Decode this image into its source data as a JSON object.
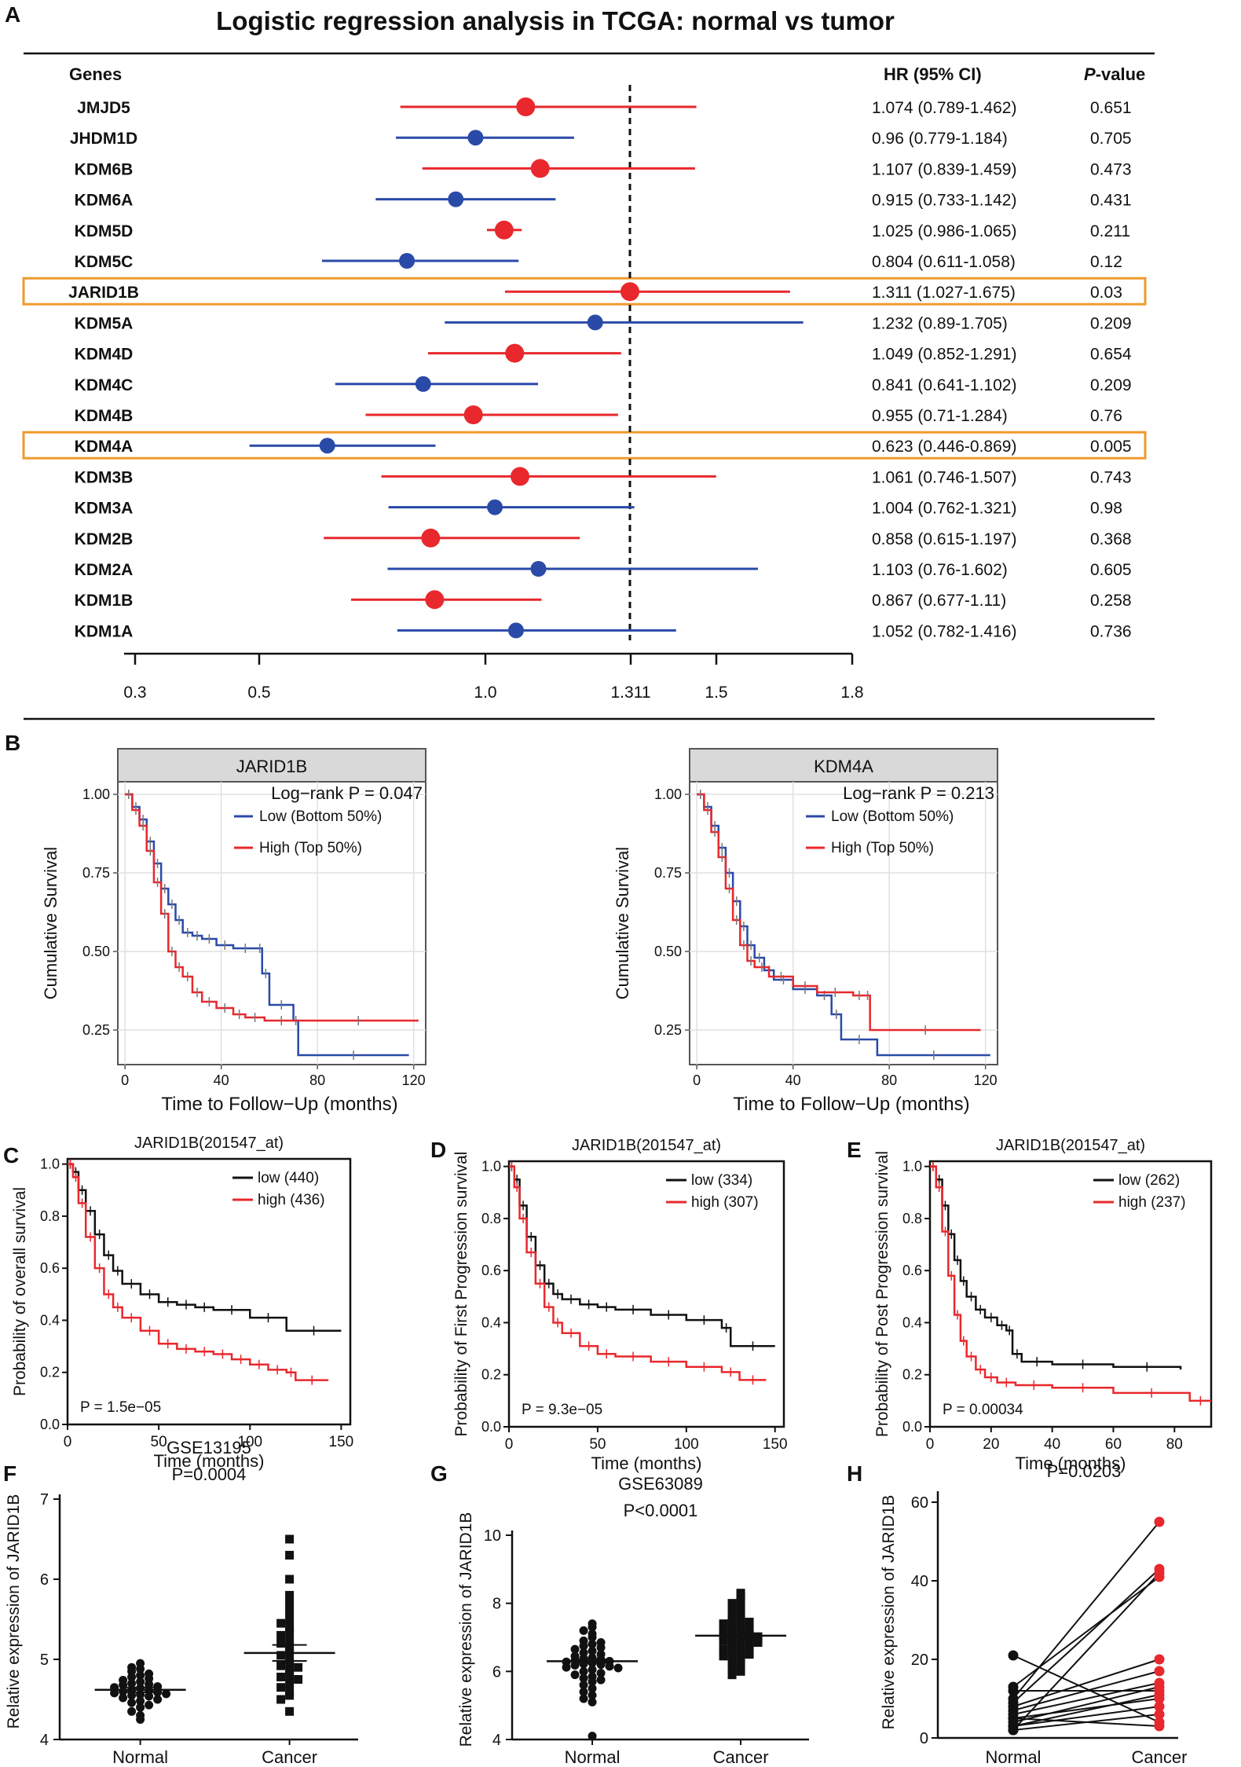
{
  "panel_labels": {
    "A": "A",
    "B": "B",
    "C": "C",
    "D": "D",
    "E": "E",
    "F": "F",
    "G": "G",
    "H": "H"
  },
  "chart_data": [
    {
      "id": "A",
      "type": "forest",
      "title": "Logistic regression analysis in TCGA: normal vs tumor",
      "col_genes": "Genes",
      "col_hr": "HR (95% CI)",
      "col_p": "P-value",
      "ref_line": 1.311,
      "ticks": [
        "0.3",
        "0.5",
        "1.0",
        "1.311",
        "1.5",
        "1.8"
      ],
      "colors": {
        "red": "#e8282d",
        "blue": "#2a4aa8",
        "highlight": "#ef9a2d"
      },
      "rows": [
        {
          "gene": "JMJD5",
          "hr": 1.074,
          "lo": 0.789,
          "hi": 1.462,
          "text": "1.074 (0.789-1.462)",
          "p": "0.651",
          "color": "red",
          "hl": false
        },
        {
          "gene": "JHDM1D",
          "hr": 0.96,
          "lo": 0.779,
          "hi": 1.184,
          "text": "0.96 (0.779-1.184)",
          "p": "0.705",
          "color": "blue",
          "hl": false
        },
        {
          "gene": "KDM6B",
          "hr": 1.107,
          "lo": 0.839,
          "hi": 1.459,
          "text": "1.107 (0.839-1.459)",
          "p": "0.473",
          "color": "red",
          "hl": false
        },
        {
          "gene": "KDM6A",
          "hr": 0.915,
          "lo": 0.733,
          "hi": 1.142,
          "text": "0.915 (0.733-1.142)",
          "p": "0.431",
          "color": "blue",
          "hl": false
        },
        {
          "gene": "KDM5D",
          "hr": 1.025,
          "lo": 0.986,
          "hi": 1.065,
          "text": "1.025 (0.986-1.065)",
          "p": "0.211",
          "color": "red",
          "hl": false
        },
        {
          "gene": "KDM5C",
          "hr": 0.804,
          "lo": 0.611,
          "hi": 1.058,
          "text": "0.804 (0.611-1.058)",
          "p": "0.12",
          "color": "blue",
          "hl": false
        },
        {
          "gene": "JARID1B",
          "hr": 1.311,
          "lo": 1.027,
          "hi": 1.675,
          "text": "1.311 (1.027-1.675)",
          "p": "0.03",
          "color": "red",
          "hl": true
        },
        {
          "gene": "KDM5A",
          "hr": 1.232,
          "lo": 0.89,
          "hi": 1.705,
          "text": "1.232 (0.89-1.705)",
          "p": "0.209",
          "color": "blue",
          "hl": false
        },
        {
          "gene": "KDM4D",
          "hr": 1.049,
          "lo": 0.852,
          "hi": 1.291,
          "text": "1.049 (0.852-1.291)",
          "p": "0.654",
          "color": "red",
          "hl": false
        },
        {
          "gene": "KDM4C",
          "hr": 0.841,
          "lo": 0.641,
          "hi": 1.102,
          "text": "0.841 (0.641-1.102)",
          "p": "0.209",
          "color": "blue",
          "hl": false
        },
        {
          "gene": "KDM4B",
          "hr": 0.955,
          "lo": 0.71,
          "hi": 1.284,
          "text": "0.955 (0.71-1.284)",
          "p": "0.76",
          "color": "red",
          "hl": false
        },
        {
          "gene": "KDM4A",
          "hr": 0.623,
          "lo": 0.446,
          "hi": 0.869,
          "text": "0.623 (0.446-0.869)",
          "p": "0.005",
          "color": "blue",
          "hl": true
        },
        {
          "gene": "KDM3B",
          "hr": 1.061,
          "lo": 0.746,
          "hi": 1.507,
          "text": "1.061 (0.746-1.507)",
          "p": "0.743",
          "color": "red",
          "hl": false
        },
        {
          "gene": "KDM3A",
          "hr": 1.004,
          "lo": 0.762,
          "hi": 1.321,
          "text": "1.004 (0.762-1.321)",
          "p": "0.98",
          "color": "blue",
          "hl": false
        },
        {
          "gene": "KDM2B",
          "hr": 0.858,
          "lo": 0.615,
          "hi": 1.197,
          "text": "0.858 (0.615-1.197)",
          "p": "0.368",
          "color": "red",
          "hl": false
        },
        {
          "gene": "KDM2A",
          "hr": 1.103,
          "lo": 0.76,
          "hi": 1.602,
          "text": "1.103 (0.76-1.602)",
          "p": "0.605",
          "color": "blue",
          "hl": false
        },
        {
          "gene": "KDM1B",
          "hr": 0.867,
          "lo": 0.677,
          "hi": 1.11,
          "text": "0.867 (0.677-1.11)",
          "p": "0.258",
          "color": "red",
          "hl": false
        },
        {
          "gene": "KDM1A",
          "hr": 1.052,
          "lo": 0.782,
          "hi": 1.416,
          "text": "1.052 (0.782-1.416)",
          "p": "0.736",
          "color": "blue",
          "hl": false
        }
      ]
    },
    {
      "id": "B1",
      "type": "line",
      "strip_title": "JARID1B",
      "logrank": "Log−rank P = 0.047",
      "legend": [
        "Low (Bottom 50%)",
        "High (Top 50%)"
      ],
      "ylabel": "Cumulative Survival",
      "xlabel": "Time to Follow−Up (months)",
      "xticks": [
        "0",
        "40",
        "80",
        "120"
      ],
      "yticks": [
        "0.25",
        "0.50",
        "0.75",
        "1.00"
      ],
      "xlim": [
        -3,
        125
      ],
      "ylim": [
        0.14,
        1.04
      ],
      "series": [
        {
          "name": "Low (Bottom 50%)",
          "color": "#2a4aa8",
          "x": [
            0,
            3,
            6,
            9,
            12,
            15,
            18,
            21,
            24,
            28,
            32,
            38,
            45,
            55,
            57,
            60,
            70,
            72,
            118
          ],
          "y": [
            1.0,
            0.96,
            0.92,
            0.85,
            0.78,
            0.7,
            0.65,
            0.6,
            0.56,
            0.55,
            0.54,
            0.52,
            0.51,
            0.51,
            0.43,
            0.33,
            0.28,
            0.17,
            0.17
          ]
        },
        {
          "name": "High (Top 50%)",
          "color": "#e8282d",
          "x": [
            0,
            3,
            6,
            9,
            12,
            15,
            18,
            21,
            24,
            28,
            32,
            38,
            45,
            50,
            58,
            72,
            122
          ],
          "y": [
            1.0,
            0.95,
            0.9,
            0.82,
            0.72,
            0.62,
            0.5,
            0.45,
            0.42,
            0.37,
            0.34,
            0.32,
            0.3,
            0.29,
            0.28,
            0.28,
            0.28
          ]
        }
      ]
    },
    {
      "id": "B2",
      "type": "line",
      "strip_title": "KDM4A",
      "logrank": "Log−rank P = 0.213",
      "legend": [
        "Low (Bottom 50%)",
        "High (Top 50%)"
      ],
      "ylabel": "Cumulative Survival",
      "xlabel": "Time to Follow−Up (months)",
      "xticks": [
        "0",
        "40",
        "80",
        "120"
      ],
      "yticks": [
        "0.25",
        "0.50",
        "0.75",
        "1.00"
      ],
      "xlim": [
        -3,
        125
      ],
      "ylim": [
        0.14,
        1.04
      ],
      "series": [
        {
          "name": "Low (Bottom 50%)",
          "color": "#2a4aa8",
          "x": [
            0,
            3,
            6,
            9,
            12,
            15,
            18,
            21,
            24,
            28,
            32,
            40,
            50,
            56,
            60,
            75,
            122
          ],
          "y": [
            1.0,
            0.96,
            0.9,
            0.83,
            0.75,
            0.66,
            0.58,
            0.52,
            0.48,
            0.44,
            0.41,
            0.38,
            0.36,
            0.3,
            0.22,
            0.17,
            0.17
          ]
        },
        {
          "name": "High (Top 50%)",
          "color": "#e8282d",
          "x": [
            0,
            3,
            6,
            9,
            12,
            15,
            18,
            21,
            24,
            30,
            40,
            50,
            65,
            70,
            72,
            118
          ],
          "y": [
            1.0,
            0.95,
            0.88,
            0.8,
            0.7,
            0.6,
            0.52,
            0.47,
            0.45,
            0.42,
            0.39,
            0.37,
            0.36,
            0.36,
            0.25,
            0.25
          ]
        }
      ]
    },
    {
      "id": "C",
      "type": "line",
      "title": "JARID1B(201547_at)",
      "legend": [
        "low (440)",
        "high (436)"
      ],
      "pvalue": "P = 1.5e−05",
      "ylabel": "Probability of overall survival",
      "xlabel": "Time (months)",
      "xticks": [
        "0",
        "50",
        "100",
        "150"
      ],
      "yticks": [
        "0.0",
        "0.2",
        "0.4",
        "0.6",
        "0.8",
        "1.0"
      ],
      "xlim": [
        0,
        155
      ],
      "ylim": [
        0,
        1.02
      ],
      "series": [
        {
          "name": "low (440)",
          "color": "#111111",
          "x": [
            0,
            3,
            6,
            10,
            15,
            20,
            25,
            30,
            40,
            50,
            60,
            70,
            80,
            100,
            120,
            150
          ],
          "y": [
            1.0,
            0.97,
            0.9,
            0.82,
            0.73,
            0.65,
            0.59,
            0.54,
            0.5,
            0.47,
            0.46,
            0.45,
            0.44,
            0.41,
            0.36,
            0.36
          ]
        },
        {
          "name": "high (436)",
          "color": "#e8282d",
          "x": [
            0,
            3,
            6,
            10,
            15,
            20,
            25,
            30,
            40,
            50,
            60,
            70,
            80,
            90,
            100,
            110,
            120,
            125,
            143
          ],
          "y": [
            1.0,
            0.95,
            0.85,
            0.72,
            0.6,
            0.5,
            0.45,
            0.41,
            0.36,
            0.31,
            0.29,
            0.28,
            0.27,
            0.25,
            0.23,
            0.21,
            0.2,
            0.17,
            0.17
          ]
        }
      ]
    },
    {
      "id": "D",
      "type": "line",
      "title": "JARID1B(201547_at)",
      "legend": [
        "low (334)",
        "high (307)"
      ],
      "pvalue": "P = 9.3e−05",
      "ylabel": "Probability of First Progression survival",
      "xlabel": "Time (months)",
      "xticks": [
        "0",
        "50",
        "100",
        "150"
      ],
      "yticks": [
        "0.0",
        "0.2",
        "0.4",
        "0.6",
        "0.8",
        "1.0"
      ],
      "xlim": [
        0,
        155
      ],
      "ylim": [
        0,
        1.02
      ],
      "series": [
        {
          "name": "low (334)",
          "color": "#111111",
          "x": [
            0,
            3,
            6,
            10,
            15,
            20,
            25,
            30,
            40,
            50,
            60,
            80,
            100,
            120,
            125,
            150
          ],
          "y": [
            1.0,
            0.95,
            0.85,
            0.73,
            0.62,
            0.55,
            0.51,
            0.49,
            0.47,
            0.46,
            0.45,
            0.43,
            0.41,
            0.38,
            0.31,
            0.31
          ]
        },
        {
          "name": "high (307)",
          "color": "#e8282d",
          "x": [
            0,
            3,
            6,
            10,
            15,
            20,
            25,
            30,
            40,
            50,
            60,
            80,
            100,
            120,
            130,
            145
          ],
          "y": [
            1.0,
            0.92,
            0.8,
            0.67,
            0.55,
            0.46,
            0.4,
            0.36,
            0.31,
            0.28,
            0.27,
            0.25,
            0.23,
            0.21,
            0.18,
            0.18
          ]
        }
      ]
    },
    {
      "id": "E",
      "type": "line",
      "title": "JARID1B(201547_at)",
      "legend": [
        "low (262)",
        "high (237)"
      ],
      "pvalue": "P = 0.00034",
      "ylabel": "Probability of Post Progression survival",
      "xlabel": "Time (months)",
      "xticks": [
        "0",
        "20",
        "40",
        "60",
        "80"
      ],
      "yticks": [
        "0.0",
        "0.2",
        "0.4",
        "0.6",
        "0.8",
        "1.0"
      ],
      "xlim": [
        0,
        92
      ],
      "ylim": [
        0,
        1.02
      ],
      "series": [
        {
          "name": "low (262)",
          "color": "#111111",
          "x": [
            0,
            2,
            4,
            6,
            8,
            10,
            12,
            15,
            18,
            22,
            25,
            27,
            30,
            40,
            60,
            82
          ],
          "y": [
            1.0,
            0.95,
            0.85,
            0.74,
            0.64,
            0.56,
            0.5,
            0.45,
            0.42,
            0.39,
            0.37,
            0.28,
            0.25,
            0.24,
            0.23,
            0.22
          ]
        },
        {
          "name": "high (237)",
          "color": "#e8282d",
          "x": [
            0,
            2,
            4,
            6,
            8,
            10,
            12,
            15,
            18,
            22,
            28,
            40,
            60,
            85,
            92
          ],
          "y": [
            1.0,
            0.92,
            0.75,
            0.58,
            0.43,
            0.33,
            0.27,
            0.22,
            0.19,
            0.17,
            0.16,
            0.15,
            0.13,
            0.1,
            0.1
          ]
        }
      ]
    },
    {
      "id": "F",
      "type": "scatter",
      "dataset": "GSE13195",
      "pvalue": "P=0.0004",
      "ylabel": "Relative expression of JARID1B",
      "categories": [
        "Normal",
        "Cancer"
      ],
      "yticks": [
        "4",
        "5",
        "6",
        "7"
      ],
      "ylim": [
        4,
        7
      ],
      "means": [
        4.62,
        5.08
      ],
      "sems": [
        0.03,
        0.1
      ],
      "groups": [
        [
          4.95,
          4.9,
          4.88,
          4.85,
          4.82,
          4.8,
          4.78,
          4.76,
          4.74,
          4.72,
          4.7,
          4.69,
          4.68,
          4.66,
          4.65,
          4.64,
          4.62,
          4.61,
          4.6,
          4.59,
          4.58,
          4.57,
          4.56,
          4.55,
          4.54,
          4.52,
          4.5,
          4.48,
          4.46,
          4.43,
          4.4,
          4.35,
          4.3,
          4.25
        ],
        [
          6.5,
          6.3,
          6.0,
          5.8,
          5.7,
          5.6,
          5.5,
          5.45,
          5.4,
          5.35,
          5.3,
          5.25,
          5.2,
          5.15,
          5.1,
          5.05,
          5.0,
          4.95,
          4.92,
          4.9,
          4.85,
          4.8,
          4.78,
          4.75,
          4.7,
          4.65,
          4.6,
          4.55,
          4.5,
          4.35
        ]
      ]
    },
    {
      "id": "G",
      "type": "scatter",
      "dataset": "GSE63089",
      "pvalue": "P<0.0001",
      "ylabel": "Relative expression of JARID1B",
      "categories": [
        "Normal",
        "Cancer"
      ],
      "yticks": [
        "4",
        "6",
        "8",
        "10"
      ],
      "ylim": [
        4,
        10
      ],
      "means": [
        6.3,
        7.05
      ],
      "sems": [
        0.05,
        0.05
      ],
      "groups": [
        [
          7.4,
          7.3,
          7.2,
          7.1,
          7.0,
          6.9,
          6.85,
          6.8,
          6.75,
          6.7,
          6.65,
          6.6,
          6.55,
          6.5,
          6.45,
          6.4,
          6.38,
          6.35,
          6.32,
          6.3,
          6.28,
          6.25,
          6.22,
          6.2,
          6.18,
          6.15,
          6.12,
          6.1,
          6.05,
          6.0,
          5.95,
          5.9,
          5.85,
          5.8,
          5.75,
          5.7,
          5.6,
          5.5,
          5.4,
          5.3,
          5.2,
          5.1,
          4.1
        ],
        [
          8.3,
          8.2,
          8.1,
          8.0,
          7.9,
          7.8,
          7.7,
          7.6,
          7.55,
          7.5,
          7.45,
          7.4,
          7.35,
          7.3,
          7.25,
          7.2,
          7.15,
          7.1,
          7.08,
          7.05,
          7.02,
          7.0,
          6.98,
          6.95,
          6.9,
          6.85,
          6.8,
          6.75,
          6.7,
          6.65,
          6.6,
          6.55,
          6.5,
          6.45,
          6.4,
          6.3,
          6.2,
          6.1,
          6.0,
          5.9
        ]
      ]
    },
    {
      "id": "H",
      "type": "paired",
      "pvalue": "P=0.0203",
      "ylabel": "Relative expression of JARID1B",
      "categories": [
        "Normal",
        "Cancer"
      ],
      "yticks": [
        "0",
        "20",
        "40",
        "60"
      ],
      "ylim": [
        0,
        60
      ],
      "pairs": [
        [
          21,
          4
        ],
        [
          13,
          41
        ],
        [
          12,
          12
        ],
        [
          10,
          55
        ],
        [
          9,
          43
        ],
        [
          8,
          20
        ],
        [
          7,
          17
        ],
        [
          6,
          14
        ],
        [
          5,
          10
        ],
        [
          5,
          3
        ],
        [
          4,
          13
        ],
        [
          3,
          8
        ],
        [
          3,
          11
        ],
        [
          2,
          6
        ],
        [
          2,
          42
        ]
      ]
    }
  ]
}
